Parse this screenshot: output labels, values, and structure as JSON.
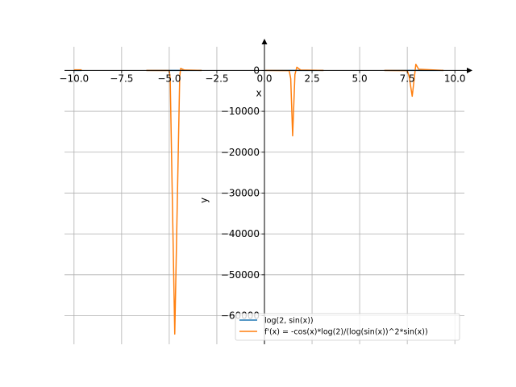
{
  "chart_data": {
    "type": "line",
    "xlabel": "x",
    "ylabel": "y",
    "xlim": [
      -10.5,
      10.5
    ],
    "ylim": [
      -67000,
      5800
    ],
    "grid": true,
    "legend_placement": "lower-right",
    "x_ticks": [
      -10,
      -7.5,
      -5,
      -2.5,
      0,
      2.5,
      5,
      7.5,
      10
    ],
    "x_tick_labels": [
      "−10.0",
      "−7.5",
      "−5.0",
      "−2.5",
      "0.0",
      "2.5",
      "5.0",
      "7.5",
      "10.0"
    ],
    "y_ticks": [
      0,
      -10000,
      -20000,
      -30000,
      -40000,
      -50000,
      -60000
    ],
    "y_tick_labels": [
      "0",
      "−10000",
      "−20000",
      "−30000",
      "−40000",
      "−50000",
      "−60000"
    ],
    "series": [
      {
        "name": "log(2, sin(x))",
        "color": "#1f77b4",
        "segments": [
          [
            [
              -10.0,
              0
            ],
            [
              -9.6,
              0
            ]
          ],
          [
            [
              -6.2,
              0
            ],
            [
              -3.3,
              0
            ]
          ],
          [
            [
              0.05,
              0
            ],
            [
              3.1,
              0
            ]
          ],
          [
            [
              6.3,
              0
            ],
            [
              9.4,
              0
            ]
          ]
        ]
      },
      {
        "name": "f'(x) = -cos(x)*log(2)/(log(sin(x))^2*sin(x))",
        "color": "#ff7f0e",
        "segments": [
          [
            [
              -10.0,
              150
            ],
            [
              -9.6,
              150
            ]
          ],
          [
            [
              -6.2,
              0
            ],
            [
              -5.0,
              -20
            ],
            [
              -4.95,
              -2000
            ],
            [
              -4.71,
              -64500
            ],
            [
              -4.45,
              -1500
            ],
            [
              -4.4,
              500
            ],
            [
              -4.2,
              100
            ],
            [
              -3.3,
              0
            ]
          ],
          [
            [
              0.05,
              0
            ],
            [
              1.3,
              -50
            ],
            [
              1.38,
              -2000
            ],
            [
              1.48,
              -16000
            ],
            [
              1.6,
              -1000
            ],
            [
              1.7,
              800
            ],
            [
              1.9,
              100
            ],
            [
              3.1,
              0
            ]
          ],
          [
            [
              6.3,
              0
            ],
            [
              7.5,
              -50
            ],
            [
              7.6,
              -1500
            ],
            [
              7.76,
              -6300
            ],
            [
              7.95,
              1500
            ],
            [
              8.1,
              300
            ],
            [
              9.4,
              0
            ]
          ]
        ]
      }
    ]
  }
}
